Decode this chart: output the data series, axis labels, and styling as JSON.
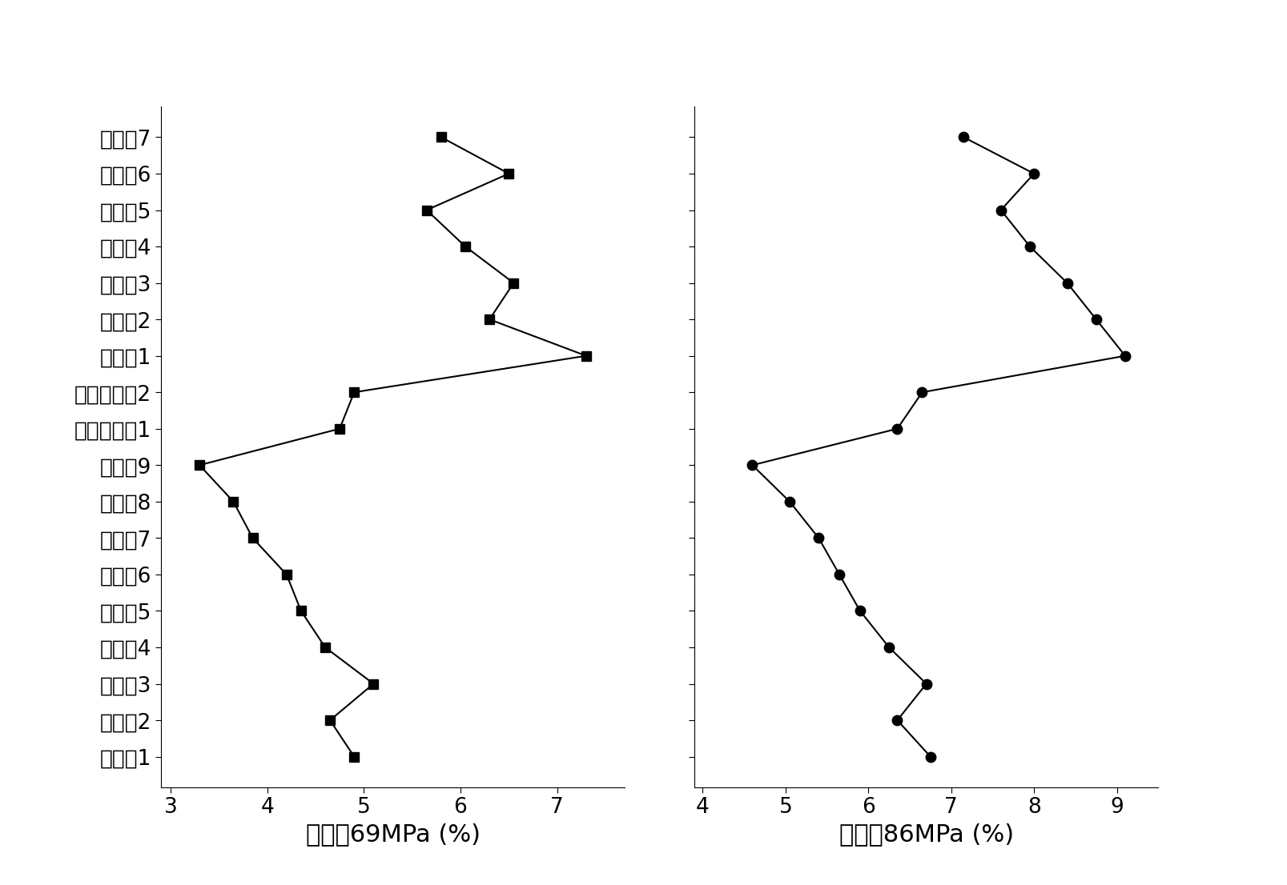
{
  "categories": [
    "实施例1",
    "实施例2",
    "实施例3",
    "实施例4",
    "实施例5",
    "实施例6",
    "实施例7",
    "实施例8",
    "实施例9",
    "对比实施例1",
    "对比实施例2",
    "对比例1",
    "对比例2",
    "对比例3",
    "对比例4",
    "对比例5",
    "对比例6",
    "对比例7"
  ],
  "data_69mpa": [
    4.9,
    4.65,
    5.1,
    4.6,
    4.35,
    4.2,
    3.85,
    3.65,
    3.3,
    4.75,
    4.9,
    7.3,
    6.3,
    6.55,
    6.05,
    5.65,
    6.5,
    5.8
  ],
  "data_86mpa": [
    6.75,
    6.35,
    6.7,
    6.25,
    5.9,
    5.65,
    5.4,
    5.05,
    4.6,
    6.35,
    6.65,
    9.1,
    8.75,
    8.4,
    7.95,
    7.6,
    8.0,
    7.15
  ],
  "xlabel_69": "破碎率69MPa (%)",
  "xlabel_86": "破碎率86MPa (%)",
  "xlim_69": [
    2.9,
    7.7
  ],
  "xlim_86": [
    3.9,
    9.5
  ],
  "xticks_69": [
    3,
    4,
    5,
    6,
    7
  ],
  "xticks_86": [
    4,
    5,
    6,
    7,
    8,
    9
  ],
  "marker_69": "s",
  "marker_86": "o",
  "marker_size": 9,
  "line_color": "#000000",
  "background_color": "#ffffff",
  "font_size_labels": 22,
  "font_size_ticks": 19,
  "font_size_yticks": 19
}
